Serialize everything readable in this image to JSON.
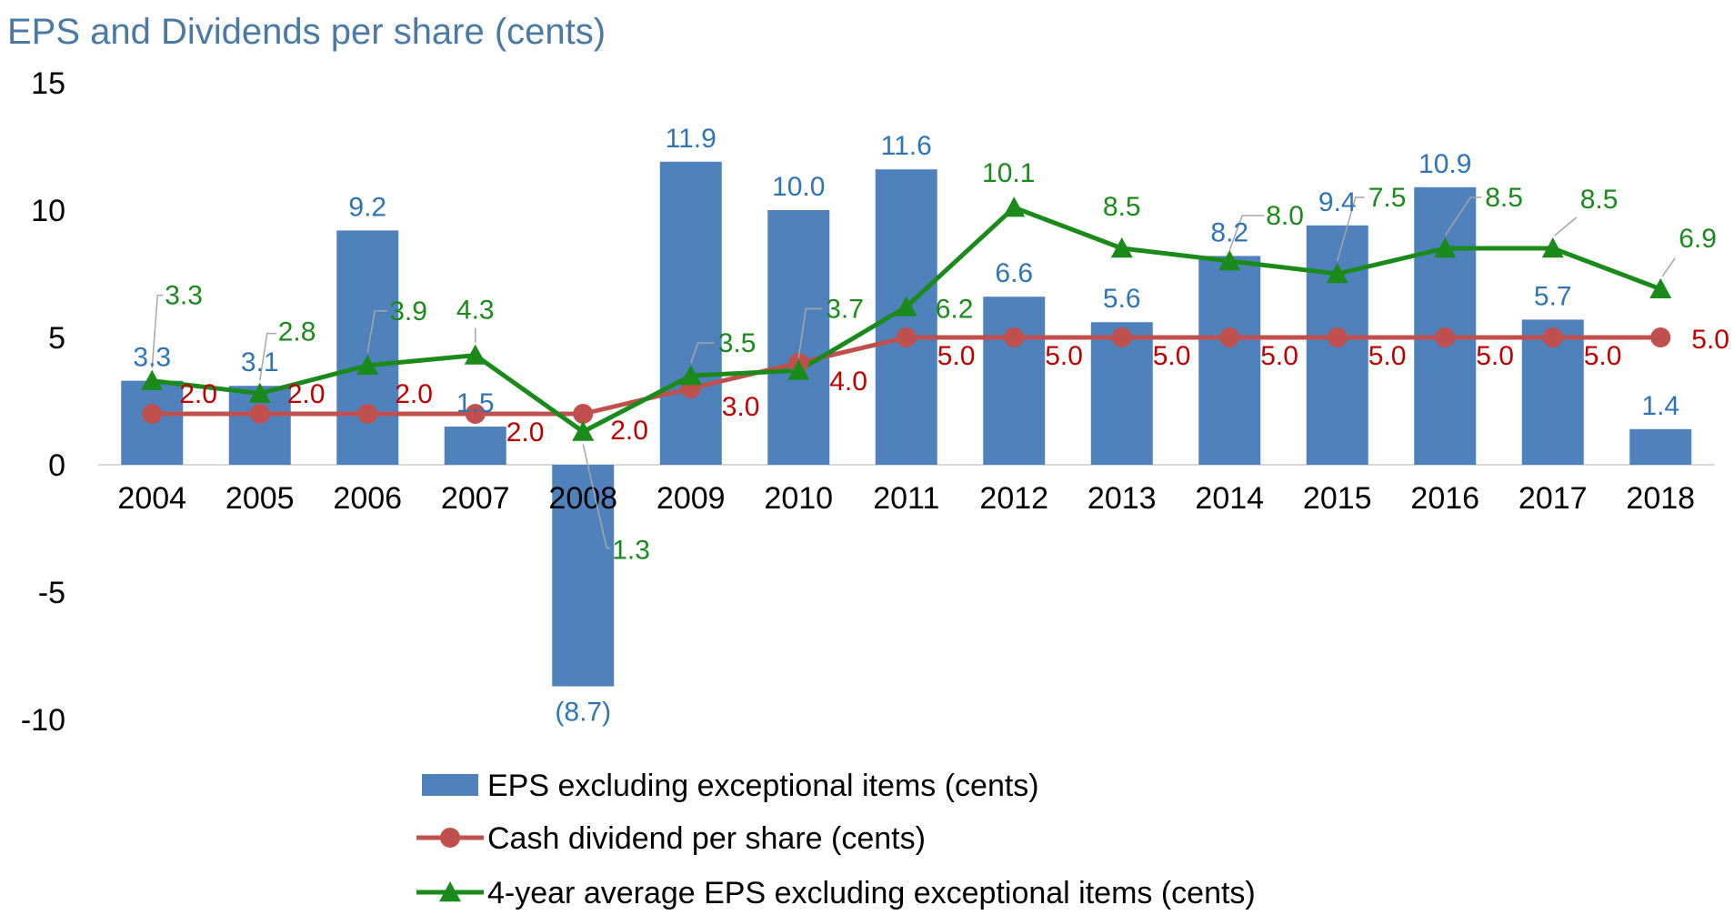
{
  "chart_data": {
    "type": "bar",
    "title": "EPS and Dividends per share (cents)",
    "xlabel": "",
    "ylabel": "",
    "ylim": [
      -10,
      15
    ],
    "yticks": [
      15,
      10,
      5,
      0,
      -5,
      -10
    ],
    "ytick_labels": [
      "15",
      "10",
      "5",
      "0",
      "-5",
      "-10"
    ],
    "categories": [
      "2004",
      "2005",
      "2006",
      "2007",
      "2008",
      "2009",
      "2010",
      "2011",
      "2012",
      "2013",
      "2014",
      "2015",
      "2016",
      "2017",
      "2018"
    ],
    "series": [
      {
        "name": "EPS excluding exceptional items (cents)",
        "kind": "bar",
        "color": "#4f81bd",
        "label_color": "#2e75b6",
        "values": [
          3.3,
          3.1,
          9.2,
          1.5,
          -8.7,
          11.9,
          10.0,
          11.6,
          6.6,
          5.6,
          8.2,
          9.4,
          10.9,
          5.7,
          1.4
        ],
        "labels": [
          "3.3",
          "3.1",
          "9.2",
          "1.5",
          "(8.7)",
          "11.9",
          "10.0",
          "11.6",
          "6.6",
          "5.6",
          "8.2",
          "9.4",
          "10.9",
          "5.7",
          "1.4"
        ]
      },
      {
        "name": "Cash dividend per share (cents)",
        "kind": "line",
        "marker": "circle",
        "color": "#c0504d",
        "label_color": "#c00000",
        "values": [
          2.0,
          2.0,
          2.0,
          2.0,
          2.0,
          3.0,
          4.0,
          5.0,
          5.0,
          5.0,
          5.0,
          5.0,
          5.0,
          5.0,
          5.0
        ],
        "labels": [
          "2.0",
          "2.0",
          "2.0",
          "2.0",
          "2.0",
          "3.0",
          "4.0",
          "5.0",
          "5.0",
          "5.0",
          "5.0",
          "5.0",
          "5.0",
          "5.0",
          "5.0"
        ]
      },
      {
        "name": "4-year average EPS excluding exceptional items (cents)",
        "kind": "line",
        "marker": "triangle",
        "color": "#1a8a1a",
        "label_color": "#1a8a1a",
        "values": [
          3.3,
          2.8,
          3.9,
          4.3,
          1.3,
          3.5,
          3.7,
          6.2,
          10.1,
          8.5,
          8.0,
          7.5,
          8.5,
          8.5,
          6.9
        ],
        "labels": [
          "3.3",
          "2.8",
          "3.9",
          "4.3",
          "1.3",
          "3.5",
          "3.7",
          "6.2",
          "10.1",
          "8.5",
          "8.0",
          "7.5",
          "8.5",
          "8.5",
          "6.9"
        ]
      }
    ],
    "legend_position": "bottom-center"
  }
}
